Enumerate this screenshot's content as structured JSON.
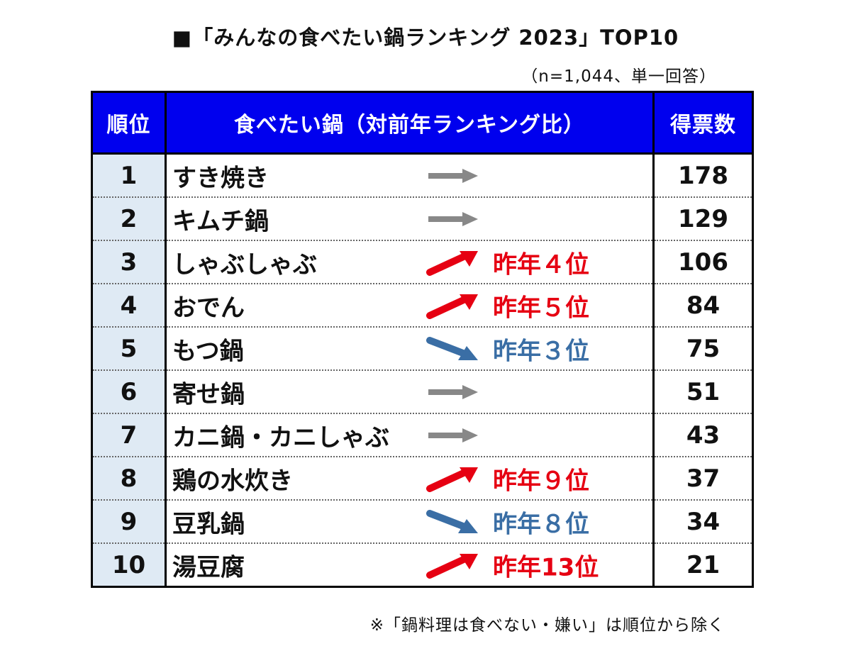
{
  "title": "■「みんなの食べたい鍋ランキング 2023」TOP10",
  "subtitle": "（n=1,044、単一回答）",
  "footnote": "※「鍋料理は食べない・嫌い」は順位から除く",
  "colors": {
    "header_bg": "#0000ee",
    "rank_bg": "#dfeaf4",
    "up": "#e60012",
    "down": "#3a6ea5",
    "same": "#888888"
  },
  "chart_data": {
    "type": "table",
    "columns": [
      "順位",
      "食べたい鍋（対前年ランキング比）",
      "得票数"
    ],
    "rows": [
      {
        "rank": "1",
        "dish": "すき焼き",
        "trend": "same",
        "prev": "",
        "votes": "178"
      },
      {
        "rank": "2",
        "dish": "キムチ鍋",
        "trend": "same",
        "prev": "",
        "votes": "129"
      },
      {
        "rank": "3",
        "dish": "しゃぶしゃぶ",
        "trend": "up",
        "prev": "昨年４位",
        "votes": "106"
      },
      {
        "rank": "4",
        "dish": "おでん",
        "trend": "up",
        "prev": "昨年５位",
        "votes": "84"
      },
      {
        "rank": "5",
        "dish": "もつ鍋",
        "trend": "down",
        "prev": "昨年３位",
        "votes": "75"
      },
      {
        "rank": "6",
        "dish": "寄せ鍋",
        "trend": "same",
        "prev": "",
        "votes": "51"
      },
      {
        "rank": "7",
        "dish": "カニ鍋・カニしゃぶ",
        "trend": "same",
        "prev": "",
        "votes": "43"
      },
      {
        "rank": "8",
        "dish": "鶏の水炊き",
        "trend": "up",
        "prev": "昨年９位",
        "votes": "37"
      },
      {
        "rank": "9",
        "dish": "豆乳鍋",
        "trend": "down",
        "prev": "昨年８位",
        "votes": "34"
      },
      {
        "rank": "10",
        "dish": "湯豆腐",
        "trend": "up",
        "prev": "昨年13位",
        "votes": "21"
      }
    ]
  }
}
